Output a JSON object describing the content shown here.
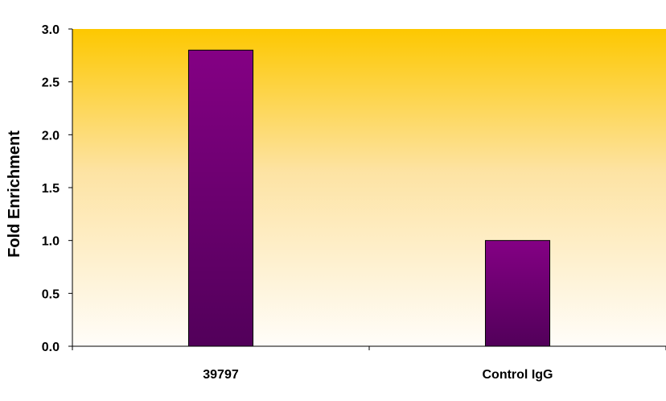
{
  "chart_data": {
    "type": "bar",
    "categories": [
      "39797",
      "Control IgG"
    ],
    "values": [
      2.8,
      1.0
    ],
    "title": "",
    "xlabel": "",
    "ylabel": "Fold Enrichment",
    "ylim": [
      0,
      3.0
    ],
    "yticks": [
      "0.0",
      "0.5",
      "1.0",
      "1.5",
      "2.0",
      "2.5",
      "3.0"
    ],
    "grid": false,
    "legend": "none",
    "colors": {
      "bar_top": "#840084",
      "bar_bottom": "#52005a",
      "background_top": "#fdc800",
      "background_bottom": "#fffdf9"
    }
  }
}
